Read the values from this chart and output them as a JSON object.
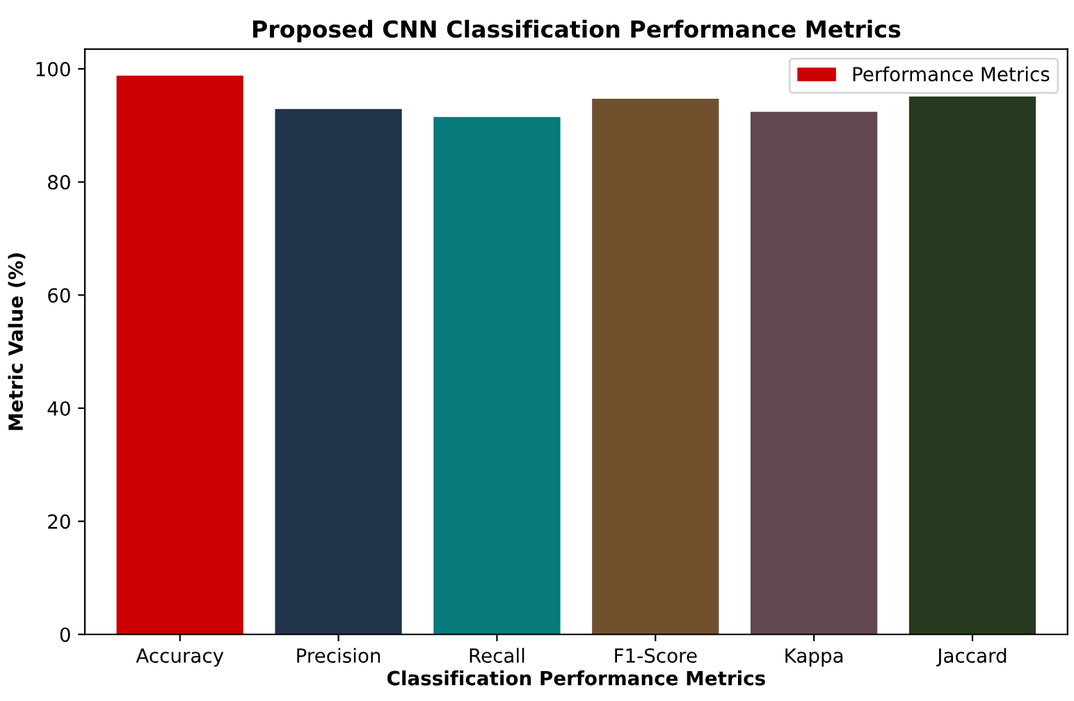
{
  "chart_data": {
    "type": "bar",
    "title": "Proposed CNN Classification Performance Metrics",
    "xlabel": "Classification Performance Metrics",
    "ylabel": "Metric Value (%)",
    "categories": [
      "Accuracy",
      "Precision",
      "Recall",
      "F1-Score",
      "Kappa",
      "Jaccard"
    ],
    "series": [
      {
        "name": "Performance Metrics",
        "values": [
          98.8,
          92.9,
          91.5,
          94.7,
          92.4,
          95.1
        ],
        "colors": [
          "#cc0000",
          "#22344a",
          "#077a7a",
          "#71512d",
          "#614853",
          "#273a1f"
        ]
      }
    ],
    "ylim": [
      0,
      103.5
    ],
    "yticks": [
      0,
      20,
      40,
      60,
      80,
      100
    ],
    "legend": "top right",
    "grid": false
  }
}
